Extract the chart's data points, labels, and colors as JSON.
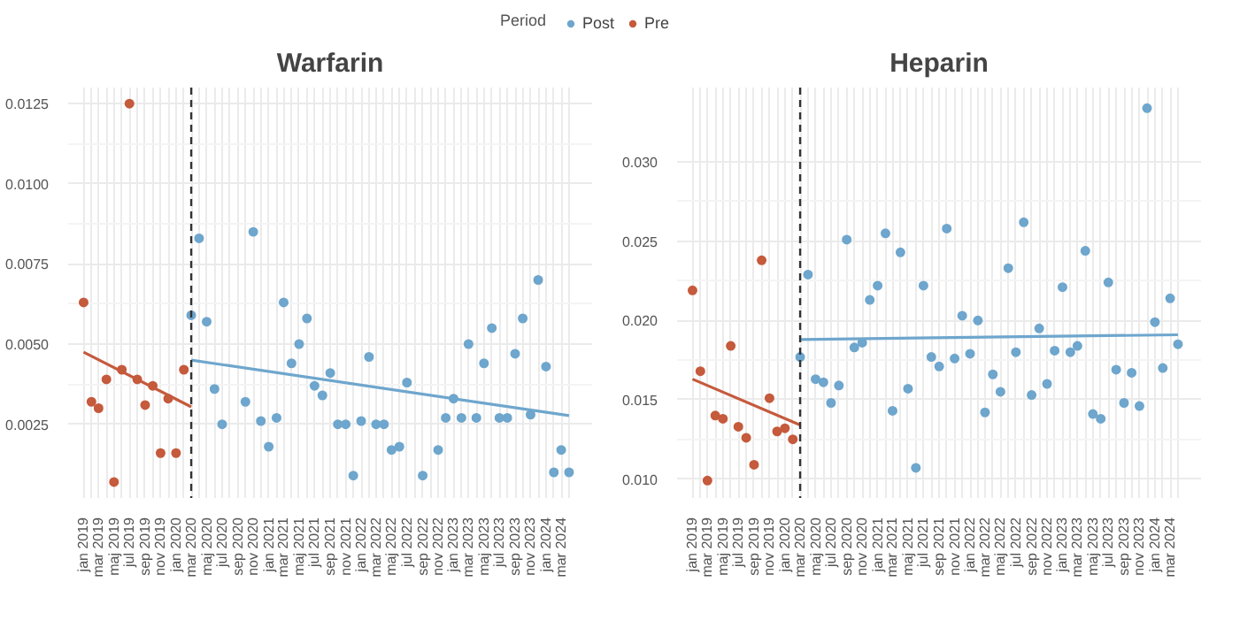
{
  "chart_data": [
    {
      "type": "scatter",
      "title": "Warfarin",
      "legend_title": "Period",
      "legend": "top",
      "grid": true,
      "marker": "circle",
      "x": [
        "2019-01",
        "2019-02",
        "2019-03",
        "2019-04",
        "2019-05",
        "2019-06",
        "2019-07",
        "2019-08",
        "2019-09",
        "2019-10",
        "2019-11",
        "2019-12",
        "2020-01",
        "2020-02",
        "2020-03",
        "2020-04",
        "2020-05",
        "2020-06",
        "2020-07",
        "2020-08",
        "2020-09",
        "2020-10",
        "2020-11",
        "2020-12",
        "2021-01",
        "2021-02",
        "2021-03",
        "2021-04",
        "2021-05",
        "2021-06",
        "2021-07",
        "2021-08",
        "2021-09",
        "2021-10",
        "2021-11",
        "2021-12",
        "2022-01",
        "2022-02",
        "2022-03",
        "2022-04",
        "2022-05",
        "2022-06",
        "2022-07",
        "2022-08",
        "2022-09",
        "2022-10",
        "2022-11",
        "2022-12",
        "2023-01",
        "2023-02",
        "2023-03",
        "2023-04",
        "2023-05",
        "2023-06",
        "2023-07",
        "2023-08",
        "2023-09",
        "2023-10",
        "2023-11",
        "2023-12",
        "2024-01",
        "2024-02",
        "2024-03",
        "2024-04"
      ],
      "xlim": [
        "2018-11",
        "2024-07"
      ],
      "xticks": [
        {
          "value": "2019-01",
          "label": "jan 2019"
        },
        {
          "value": "2019-02",
          "label": null
        },
        {
          "value": "2019-03",
          "label": "mar 2019"
        },
        {
          "value": "2019-04",
          "label": null
        },
        {
          "value": "2019-05",
          "label": "maj 2019"
        },
        {
          "value": "2019-06",
          "label": null
        },
        {
          "value": "2019-07",
          "label": "jul 2019"
        },
        {
          "value": "2019-08",
          "label": null
        },
        {
          "value": "2019-09",
          "label": "sep 2019"
        },
        {
          "value": "2019-10",
          "label": null
        },
        {
          "value": "2019-11",
          "label": "nov 2019"
        },
        {
          "value": "2019-12",
          "label": null
        },
        {
          "value": "2020-01",
          "label": "jan 2020"
        },
        {
          "value": "2020-02",
          "label": null
        },
        {
          "value": "2020-03",
          "label": "mar 2020"
        },
        {
          "value": "2020-04",
          "label": null
        },
        {
          "value": "2020-05",
          "label": "maj 2020"
        },
        {
          "value": "2020-06",
          "label": null
        },
        {
          "value": "2020-07",
          "label": "jul 2020"
        },
        {
          "value": "2020-08",
          "label": null
        },
        {
          "value": "2020-09",
          "label": "sep 2020"
        },
        {
          "value": "2020-10",
          "label": null
        },
        {
          "value": "2020-11",
          "label": "nov 2020"
        },
        {
          "value": "2020-12",
          "label": null
        },
        {
          "value": "2021-01",
          "label": "jan 2021"
        },
        {
          "value": "2021-02",
          "label": null
        },
        {
          "value": "2021-03",
          "label": "mar 2021"
        },
        {
          "value": "2021-04",
          "label": null
        },
        {
          "value": "2021-05",
          "label": "maj 2021"
        },
        {
          "value": "2021-06",
          "label": null
        },
        {
          "value": "2021-07",
          "label": "jul 2021"
        },
        {
          "value": "2021-08",
          "label": null
        },
        {
          "value": "2021-09",
          "label": "sep 2021"
        },
        {
          "value": "2021-10",
          "label": null
        },
        {
          "value": "2021-11",
          "label": "nov 2021"
        },
        {
          "value": "2021-12",
          "label": null
        },
        {
          "value": "2022-01",
          "label": "jan 2022"
        },
        {
          "value": "2022-02",
          "label": null
        },
        {
          "value": "2022-03",
          "label": "mar 2022"
        },
        {
          "value": "2022-04",
          "label": null
        },
        {
          "value": "2022-05",
          "label": "maj 2022"
        },
        {
          "value": "2022-06",
          "label": null
        },
        {
          "value": "2022-07",
          "label": "jul 2022"
        },
        {
          "value": "2022-08",
          "label": null
        },
        {
          "value": "2022-09",
          "label": "sep 2022"
        },
        {
          "value": "2022-10",
          "label": null
        },
        {
          "value": "2022-11",
          "label": "nov 2022"
        },
        {
          "value": "2022-12",
          "label": null
        },
        {
          "value": "2023-01",
          "label": "jan 2023"
        },
        {
          "value": "2023-02",
          "label": null
        },
        {
          "value": "2023-03",
          "label": "mar 2023"
        },
        {
          "value": "2023-04",
          "label": null
        },
        {
          "value": "2023-05",
          "label": "maj 2023"
        },
        {
          "value": "2023-06",
          "label": null
        },
        {
          "value": "2023-07",
          "label": "jul 2023"
        },
        {
          "value": "2023-08",
          "label": null
        },
        {
          "value": "2023-09",
          "label": "sep 2023"
        },
        {
          "value": "2023-10",
          "label": null
        },
        {
          "value": "2023-11",
          "label": "nov 2023"
        },
        {
          "value": "2023-12",
          "label": null
        },
        {
          "value": "2024-01",
          "label": "jan 2024"
        },
        {
          "value": "2024-02",
          "label": null
        },
        {
          "value": "2024-03",
          "label": "mar 2024"
        },
        {
          "value": "2024-04",
          "label": null
        }
      ],
      "ylim": [
        0.0002,
        0.013
      ],
      "yticks": [
        {
          "value": 0.0025,
          "label": "0.0025"
        },
        {
          "value": 0.005,
          "label": "0.0050"
        },
        {
          "value": 0.0075,
          "label": "0.0075"
        },
        {
          "value": 0.01,
          "label": "0.0100"
        },
        {
          "value": 0.0125,
          "label": "0.0125"
        }
      ],
      "ref_lines": [
        {
          "axis": "x",
          "value": "2020-03",
          "label": null,
          "line_style": "dashed",
          "color": "#333333"
        }
      ],
      "series": [
        {
          "name": "Post",
          "color": "#6ea6cd",
          "values": [
            null,
            null,
            null,
            null,
            null,
            null,
            null,
            null,
            null,
            null,
            null,
            null,
            null,
            null,
            0.0059,
            0.0083,
            0.0057,
            0.0036,
            0.0025,
            null,
            null,
            0.0032,
            0.0085,
            0.0026,
            0.0018,
            0.0027,
            0.0063,
            0.0044,
            0.005,
            0.0058,
            0.0037,
            0.0034,
            0.0041,
            0.0025,
            0.0025,
            0.0009,
            0.0026,
            0.0046,
            0.0025,
            0.0025,
            0.0017,
            0.0018,
            0.0038,
            null,
            0.0009,
            null,
            0.0017,
            0.0027,
            0.0033,
            0.0027,
            0.005,
            0.0027,
            0.0044,
            0.0055,
            0.0027,
            0.0027,
            0.0047,
            0.0058,
            0.0028,
            0.007,
            0.0043,
            0.001,
            0.0017,
            0.001
          ]
        },
        {
          "name": "Pre",
          "color": "#c55a3c",
          "values": [
            0.0063,
            0.0032,
            0.003,
            0.0039,
            0.0007,
            0.0042,
            0.0125,
            0.0039,
            0.0031,
            0.0037,
            0.0016,
            0.0033,
            0.0016,
            0.0042,
            null,
            null,
            null,
            null,
            null,
            null,
            null,
            null,
            null,
            null,
            null,
            null,
            null,
            null,
            null,
            null,
            null,
            null,
            null,
            null,
            null,
            null,
            null,
            null,
            null,
            null,
            null,
            null,
            null,
            null,
            null,
            null,
            null,
            null,
            null,
            null,
            null,
            null,
            null,
            null,
            null,
            null,
            null,
            null,
            null,
            null,
            null,
            null,
            null,
            null
          ]
        },
        {
          "type": "line",
          "marker": "none",
          "color": "#6ea6cd",
          "x": [
            "2020-03",
            "2024-04"
          ],
          "values": [
            0.0045,
            0.00277
          ]
        },
        {
          "type": "line",
          "marker": "none",
          "color": "#c55a3c",
          "x": [
            "2019-01",
            "2020-03"
          ],
          "values": [
            0.00475,
            0.00304
          ]
        }
      ]
    },
    {
      "type": "scatter",
      "title": "Heparin",
      "grid": true,
      "marker": "circle",
      "x": [
        "2019-01",
        "2019-02",
        "2019-03",
        "2019-04",
        "2019-05",
        "2019-06",
        "2019-07",
        "2019-08",
        "2019-09",
        "2019-10",
        "2019-11",
        "2019-12",
        "2020-01",
        "2020-02",
        "2020-03",
        "2020-04",
        "2020-05",
        "2020-06",
        "2020-07",
        "2020-08",
        "2020-09",
        "2020-10",
        "2020-11",
        "2020-12",
        "2021-01",
        "2021-02",
        "2021-03",
        "2021-04",
        "2021-05",
        "2021-06",
        "2021-07",
        "2021-08",
        "2021-09",
        "2021-10",
        "2021-11",
        "2021-12",
        "2022-01",
        "2022-02",
        "2022-03",
        "2022-04",
        "2022-05",
        "2022-06",
        "2022-07",
        "2022-08",
        "2022-09",
        "2022-10",
        "2022-11",
        "2022-12",
        "2023-01",
        "2023-02",
        "2023-03",
        "2023-04",
        "2023-05",
        "2023-06",
        "2023-07",
        "2023-08",
        "2023-09",
        "2023-10",
        "2023-11",
        "2023-12",
        "2024-01",
        "2024-02",
        "2024-03",
        "2024-04"
      ],
      "xlim": [
        "2018-11",
        "2024-07"
      ],
      "xticks": [
        {
          "value": "2019-01",
          "label": "jan 2019"
        },
        {
          "value": "2019-02",
          "label": null
        },
        {
          "value": "2019-03",
          "label": "mar 2019"
        },
        {
          "value": "2019-04",
          "label": null
        },
        {
          "value": "2019-05",
          "label": "maj 2019"
        },
        {
          "value": "2019-06",
          "label": null
        },
        {
          "value": "2019-07",
          "label": "jul 2019"
        },
        {
          "value": "2019-08",
          "label": null
        },
        {
          "value": "2019-09",
          "label": "sep 2019"
        },
        {
          "value": "2019-10",
          "label": null
        },
        {
          "value": "2019-11",
          "label": "nov 2019"
        },
        {
          "value": "2019-12",
          "label": null
        },
        {
          "value": "2020-01",
          "label": "jan 2020"
        },
        {
          "value": "2020-02",
          "label": null
        },
        {
          "value": "2020-03",
          "label": "mar 2020"
        },
        {
          "value": "2020-04",
          "label": null
        },
        {
          "value": "2020-05",
          "label": "maj 2020"
        },
        {
          "value": "2020-06",
          "label": null
        },
        {
          "value": "2020-07",
          "label": "jul 2020"
        },
        {
          "value": "2020-08",
          "label": null
        },
        {
          "value": "2020-09",
          "label": "sep 2020"
        },
        {
          "value": "2020-10",
          "label": null
        },
        {
          "value": "2020-11",
          "label": "nov 2020"
        },
        {
          "value": "2020-12",
          "label": null
        },
        {
          "value": "2021-01",
          "label": "jan 2021"
        },
        {
          "value": "2021-02",
          "label": null
        },
        {
          "value": "2021-03",
          "label": "mar 2021"
        },
        {
          "value": "2021-04",
          "label": null
        },
        {
          "value": "2021-05",
          "label": "maj 2021"
        },
        {
          "value": "2021-06",
          "label": null
        },
        {
          "value": "2021-07",
          "label": "jul 2021"
        },
        {
          "value": "2021-08",
          "label": null
        },
        {
          "value": "2021-09",
          "label": "sep 2021"
        },
        {
          "value": "2021-10",
          "label": null
        },
        {
          "value": "2021-11",
          "label": "nov 2021"
        },
        {
          "value": "2021-12",
          "label": null
        },
        {
          "value": "2022-01",
          "label": "jan 2022"
        },
        {
          "value": "2022-02",
          "label": null
        },
        {
          "value": "2022-03",
          "label": "mar 2022"
        },
        {
          "value": "2022-04",
          "label": null
        },
        {
          "value": "2022-05",
          "label": "maj 2022"
        },
        {
          "value": "2022-06",
          "label": null
        },
        {
          "value": "2022-07",
          "label": "jul 2022"
        },
        {
          "value": "2022-08",
          "label": null
        },
        {
          "value": "2022-09",
          "label": "sep 2022"
        },
        {
          "value": "2022-10",
          "label": null
        },
        {
          "value": "2022-11",
          "label": "nov 2022"
        },
        {
          "value": "2022-12",
          "label": null
        },
        {
          "value": "2023-01",
          "label": "jan 2023"
        },
        {
          "value": "2023-02",
          "label": null
        },
        {
          "value": "2023-03",
          "label": "mar 2023"
        },
        {
          "value": "2023-04",
          "label": null
        },
        {
          "value": "2023-05",
          "label": "maj 2023"
        },
        {
          "value": "2023-06",
          "label": null
        },
        {
          "value": "2023-07",
          "label": "jul 2023"
        },
        {
          "value": "2023-08",
          "label": null
        },
        {
          "value": "2023-09",
          "label": "sep 2023"
        },
        {
          "value": "2023-10",
          "label": null
        },
        {
          "value": "2023-11",
          "label": "nov 2023"
        },
        {
          "value": "2023-12",
          "label": null
        },
        {
          "value": "2024-01",
          "label": "jan 2024"
        },
        {
          "value": "2024-02",
          "label": null
        },
        {
          "value": "2024-03",
          "label": "mar 2024"
        },
        {
          "value": "2024-04",
          "label": null
        }
      ],
      "ylim": [
        0.0088,
        0.0347
      ],
      "yticks": [
        {
          "value": 0.01,
          "label": "0.010"
        },
        {
          "value": 0.015,
          "label": "0.015"
        },
        {
          "value": 0.02,
          "label": "0.020"
        },
        {
          "value": 0.025,
          "label": "0.025"
        },
        {
          "value": 0.03,
          "label": "0.030"
        }
      ],
      "ref_lines": [
        {
          "axis": "x",
          "value": "2020-03",
          "label": null,
          "line_style": "dashed",
          "color": "#333333"
        }
      ],
      "series": [
        {
          "color": "#6ea6cd",
          "values": [
            null,
            null,
            null,
            null,
            null,
            null,
            null,
            null,
            null,
            null,
            null,
            null,
            null,
            null,
            0.0177,
            0.0229,
            0.0163,
            0.0161,
            0.0148,
            0.0159,
            0.0251,
            0.0183,
            0.0186,
            0.0213,
            0.0222,
            0.0255,
            0.0143,
            0.0243,
            0.0157,
            0.0107,
            0.0222,
            0.0177,
            0.0171,
            0.0258,
            0.0176,
            0.0203,
            0.0179,
            0.02,
            0.0142,
            0.0166,
            0.0155,
            0.0233,
            0.018,
            0.0262,
            0.0153,
            0.0195,
            0.016,
            0.0181,
            0.0221,
            0.018,
            0.0184,
            0.0244,
            0.0141,
            0.0138,
            0.0224,
            0.0169,
            0.0148,
            0.0167,
            0.0146,
            0.0334,
            0.0199,
            0.017,
            0.0214,
            0.0185
          ]
        },
        {
          "color": "#c55a3c",
          "values": [
            0.0219,
            0.0168,
            0.0099,
            0.014,
            0.0138,
            0.0184,
            0.0133,
            0.0126,
            0.0109,
            0.0238,
            0.0151,
            0.013,
            0.0132,
            0.0125,
            null,
            null,
            null,
            null,
            null,
            null,
            null,
            null,
            null,
            null,
            null,
            null,
            null,
            null,
            null,
            null,
            null,
            null,
            null,
            null,
            null,
            null,
            null,
            null,
            null,
            null,
            null,
            null,
            null,
            null,
            null,
            null,
            null,
            null,
            null,
            null,
            null,
            null,
            null,
            null,
            null,
            null,
            null,
            null,
            null,
            null,
            null,
            null,
            null,
            null
          ]
        },
        {
          "type": "line",
          "marker": "none",
          "color": "#6ea6cd",
          "x": [
            "2020-03",
            "2024-04"
          ],
          "values": [
            0.0188,
            0.0191
          ]
        },
        {
          "type": "line",
          "marker": "none",
          "color": "#c55a3c",
          "x": [
            "2019-01",
            "2020-03"
          ],
          "values": [
            0.0163,
            0.0134
          ]
        }
      ]
    }
  ]
}
